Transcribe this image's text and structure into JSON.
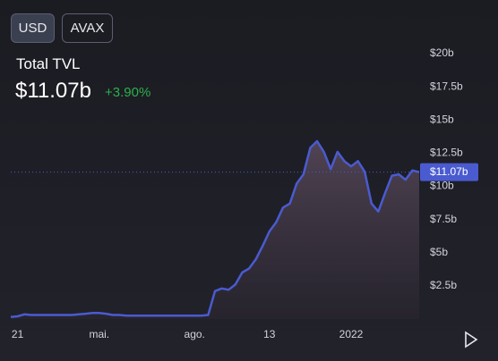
{
  "header": {
    "buttons": [
      "USD",
      "AVAX"
    ],
    "title": "Total TVL",
    "value": "$11.07b",
    "change": "+3.90%"
  },
  "chart_data": {
    "type": "area",
    "values": [
      0.15,
      0.2,
      0.35,
      0.3,
      0.3,
      0.3,
      0.3,
      0.3,
      0.3,
      0.3,
      0.35,
      0.4,
      0.45,
      0.45,
      0.4,
      0.3,
      0.3,
      0.25,
      0.25,
      0.25,
      0.25,
      0.25,
      0.25,
      0.25,
      0.25,
      0.25,
      0.25,
      0.25,
      0.25,
      0.3,
      2.1,
      2.3,
      2.2,
      2.6,
      3.5,
      3.8,
      4.5,
      5.5,
      6.6,
      7.3,
      8.4,
      8.7,
      10.2,
      10.9,
      12.9,
      13.4,
      12.6,
      11.3,
      12.6,
      11.9,
      11.5,
      11.9,
      11.1,
      8.7,
      8.1,
      9.5,
      10.8,
      10.9,
      10.5,
      11.2,
      11.07
    ],
    "color": "#4a5bd0",
    "last_value_label": "$11.07b",
    "xlim": [
      0,
      60
    ],
    "xticks": [
      {
        "value": 1,
        "label": "21"
      },
      {
        "value": 13,
        "label": "mai."
      },
      {
        "value": 27,
        "label": "ago."
      },
      {
        "value": 38,
        "label": "13"
      },
      {
        "value": 50,
        "label": "2022"
      }
    ],
    "ylim": [
      0,
      20
    ],
    "yticks": [
      {
        "value": 2.5,
        "label": "$2.5b"
      },
      {
        "value": 5,
        "label": "$5b"
      },
      {
        "value": 7.5,
        "label": "$7.5b"
      },
      {
        "value": 10,
        "label": "$10b"
      },
      {
        "value": 12.5,
        "label": "$12.5b"
      },
      {
        "value": 15,
        "label": "$15b"
      },
      {
        "value": 17.5,
        "label": "$17.5b"
      },
      {
        "value": 20,
        "label": "$20b"
      }
    ]
  }
}
